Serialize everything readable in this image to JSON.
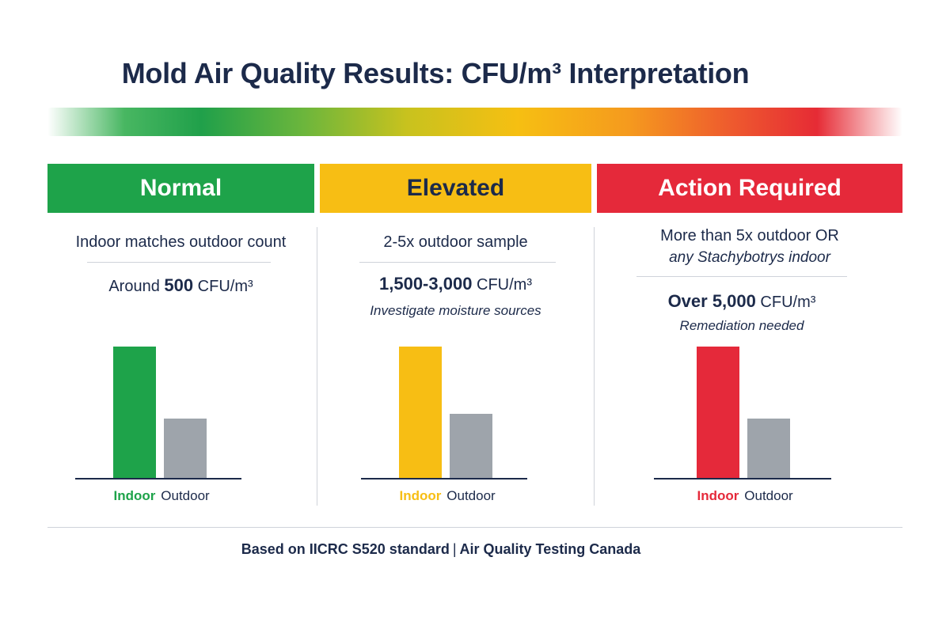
{
  "title": "Mold Air Quality Results: CFU/m³ Interpretation",
  "colors": {
    "normal": "#1ea34a",
    "elevated": "#f7be14",
    "action": "#e5293a",
    "outdoor": "#9ea4ab",
    "navy": "#1c2a4a"
  },
  "columns": [
    {
      "header": "Normal",
      "line1": "Indoor matches outdoor count",
      "line2": "",
      "value_prefix": "Around ",
      "value_number": "500",
      "value_unit": " CFU/m³",
      "note": ""
    },
    {
      "header": "Elevated",
      "line1": "2-5x outdoor sample",
      "line2": "",
      "value_prefix": "",
      "value_number": "1,500-3,000",
      "value_unit": " CFU/m³",
      "note": "Investigate moisture sources"
    },
    {
      "header": "Action Required",
      "line1": "More than 5x outdoor OR",
      "line2": "any Stachybotrys indoor",
      "value_prefix": "",
      "value_number": "Over 5,000",
      "value_unit": " CFU/m³",
      "note": "Remediation needed"
    }
  ],
  "chart_data": [
    {
      "type": "bar",
      "categories": [
        "Indoor",
        "Outdoor"
      ],
      "values": [
        167,
        76
      ],
      "ylim": [
        0,
        167
      ],
      "grid": false
    },
    {
      "type": "bar",
      "categories": [
        "Indoor",
        "Outdoor"
      ],
      "values": [
        167,
        82
      ],
      "ylim": [
        0,
        167
      ],
      "grid": false
    },
    {
      "type": "bar",
      "categories": [
        "Indoor",
        "Outdoor"
      ],
      "values": [
        167,
        76
      ],
      "ylim": [
        0,
        167
      ],
      "grid": false
    }
  ],
  "footer": {
    "source": "Based on IICRC S520 standard",
    "separator": "|",
    "org": "Air Quality Testing Canada"
  }
}
